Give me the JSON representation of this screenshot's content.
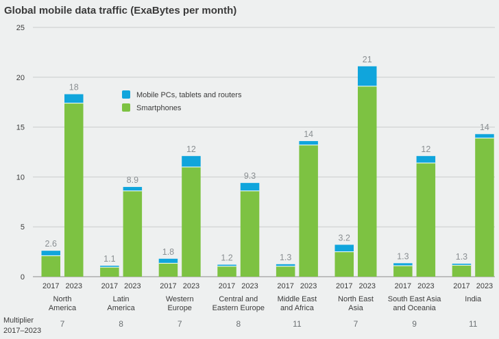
{
  "chart_data": {
    "type": "bar",
    "stacked": true,
    "title": "Global mobile data traffic (ExaBytes per month)",
    "ylim": [
      0,
      25
    ],
    "yticks": [
      0,
      5,
      10,
      15,
      20,
      25
    ],
    "years": [
      "2017",
      "2023"
    ],
    "series": [
      {
        "name": "Smartphones",
        "color": "#7dc242"
      },
      {
        "name": "Mobile PCs, tablets and routers",
        "color": "#10a5dc"
      }
    ],
    "legend": [
      "Mobile PCs, tablets and routers",
      "Smartphones"
    ],
    "regions": [
      {
        "label": [
          "North",
          "America"
        ],
        "multiplier": "7",
        "bars": [
          {
            "smartphones": 2.1,
            "other": 0.5,
            "total": "2.6"
          },
          {
            "smartphones": 17.4,
            "other": 0.9,
            "total": "18"
          }
        ]
      },
      {
        "label": [
          "Latin",
          "America"
        ],
        "multiplier": "8",
        "bars": [
          {
            "smartphones": 0.95,
            "other": 0.15,
            "total": "1.1"
          },
          {
            "smartphones": 8.6,
            "other": 0.4,
            "total": "8.9"
          }
        ]
      },
      {
        "label": [
          "Western",
          "Europe"
        ],
        "multiplier": "7",
        "bars": [
          {
            "smartphones": 1.35,
            "other": 0.45,
            "total": "1.8"
          },
          {
            "smartphones": 11.0,
            "other": 1.1,
            "total": "12"
          }
        ]
      },
      {
        "label": [
          "Central and",
          "Eastern Europe"
        ],
        "multiplier": "8",
        "bars": [
          {
            "smartphones": 1.05,
            "other": 0.15,
            "total": "1.2"
          },
          {
            "smartphones": 8.6,
            "other": 0.8,
            "total": "9.3"
          }
        ]
      },
      {
        "label": [
          "Middle East",
          "and Africa"
        ],
        "multiplier": "11",
        "bars": [
          {
            "smartphones": 1.05,
            "other": 0.2,
            "total": "1.3"
          },
          {
            "smartphones": 13.2,
            "other": 0.4,
            "total": "14"
          }
        ]
      },
      {
        "label": [
          "North East",
          "Asia"
        ],
        "multiplier": "7",
        "bars": [
          {
            "smartphones": 2.5,
            "other": 0.7,
            "total": "3.2"
          },
          {
            "smartphones": 19.1,
            "other": 2.0,
            "total": "21"
          }
        ]
      },
      {
        "label": [
          "South East Asia",
          "and Oceania"
        ],
        "multiplier": "9",
        "bars": [
          {
            "smartphones": 1.1,
            "other": 0.25,
            "total": "1.3"
          },
          {
            "smartphones": 11.4,
            "other": 0.7,
            "total": "12"
          }
        ]
      },
      {
        "label": [
          "India"
        ],
        "multiplier": "11",
        "bars": [
          {
            "smartphones": 1.15,
            "other": 0.15,
            "total": "1.3"
          },
          {
            "smartphones": 13.9,
            "other": 0.4,
            "total": "14"
          }
        ]
      }
    ],
    "multiplier_label": [
      "Multiplier",
      "2017–2023"
    ]
  }
}
